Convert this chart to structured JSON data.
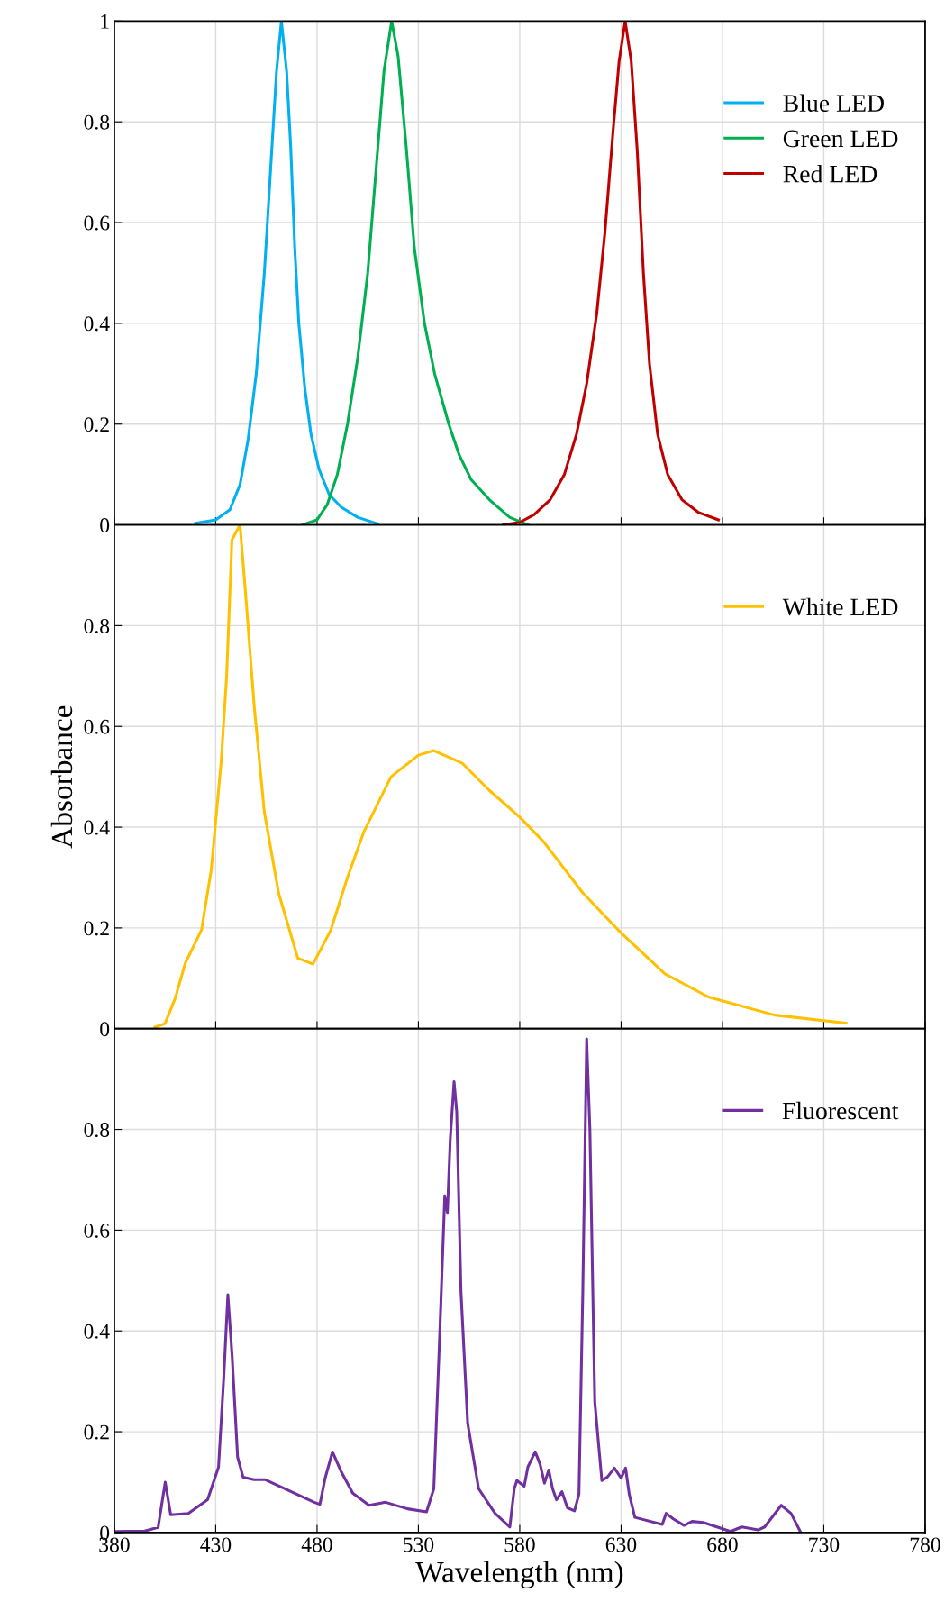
{
  "chart_data": [
    {
      "type": "line",
      "xlim": [
        380,
        780
      ],
      "xticks": [
        380,
        430,
        480,
        530,
        580,
        630,
        680,
        730,
        780
      ],
      "ylim": [
        0,
        1
      ],
      "yticks": [
        0,
        0.2,
        0.4,
        0.6,
        0.8,
        1
      ],
      "grid": true,
      "legend": "top right",
      "tick_labels": "y",
      "series": [
        {
          "name": "Blue LED",
          "color": "#00b0f0",
          "x": [
            420,
            430,
            437,
            442,
            446,
            450,
            454,
            457,
            460,
            462.4,
            465,
            467,
            469,
            471,
            474,
            477,
            481,
            486,
            492,
            500,
            510
          ],
          "values": [
            0.003,
            0.01,
            0.03,
            0.08,
            0.17,
            0.3,
            0.5,
            0.7,
            0.9,
            1,
            0.9,
            0.75,
            0.55,
            0.4,
            0.27,
            0.18,
            0.11,
            0.06,
            0.035,
            0.015,
            0.002
          ]
        },
        {
          "name": "Green LED",
          "color": "#00b050",
          "x": [
            473,
            480,
            485,
            490,
            495,
            500,
            505,
            509,
            513,
            516.8,
            520,
            524,
            528,
            533,
            538,
            545,
            550,
            556,
            565,
            575,
            584
          ],
          "values": [
            0,
            0.01,
            0.04,
            0.1,
            0.2,
            0.33,
            0.5,
            0.7,
            0.9,
            1,
            0.93,
            0.75,
            0.55,
            0.4,
            0.3,
            0.2,
            0.14,
            0.09,
            0.05,
            0.015,
            0
          ]
        },
        {
          "name": "Red LED",
          "color": "#c00000",
          "x": [
            572,
            580,
            587,
            595,
            602,
            608,
            613,
            618,
            622,
            626,
            629,
            632,
            635,
            638,
            641,
            644,
            648,
            653,
            660,
            668,
            678
          ],
          "values": [
            0,
            0.005,
            0.02,
            0.05,
            0.1,
            0.18,
            0.28,
            0.42,
            0.58,
            0.78,
            0.92,
            1,
            0.92,
            0.74,
            0.5,
            0.32,
            0.18,
            0.1,
            0.05,
            0.025,
            0.01
          ]
        }
      ]
    },
    {
      "type": "line",
      "ylabel": "Absorbance",
      "xlim": [
        380,
        780
      ],
      "xticks": [
        380,
        430,
        480,
        530,
        580,
        630,
        680,
        730,
        780
      ],
      "ylim": [
        0,
        1
      ],
      "yticks": [
        0,
        0.2,
        0.4,
        0.6,
        0.8
      ],
      "grid": true,
      "legend": "top right",
      "tick_labels": "y",
      "series": [
        {
          "name": "White LED",
          "color": "#ffc000",
          "x": [
            400,
            405,
            410,
            415,
            423,
            427.8,
            432.7,
            435.4,
            438,
            442,
            445,
            449,
            454,
            461,
            470.5,
            478,
            486.8,
            495,
            503,
            516.5,
            530,
            537.6,
            551.6,
            565,
            580,
            592,
            611,
            630,
            651.6,
            673,
            705.7,
            741
          ],
          "values": [
            0.003,
            0.01,
            0.06,
            0.13,
            0.196,
            0.315,
            0.53,
            0.7,
            0.97,
            1,
            0.85,
            0.64,
            0.43,
            0.27,
            0.14,
            0.128,
            0.196,
            0.3,
            0.39,
            0.5,
            0.543,
            0.552,
            0.527,
            0.473,
            0.42,
            0.37,
            0.27,
            0.19,
            0.109,
            0.063,
            0.027,
            0.011
          ]
        }
      ]
    },
    {
      "type": "line",
      "xlabel": "Wavelength (nm)",
      "xlim": [
        380,
        780
      ],
      "xticks": [
        380,
        430,
        480,
        530,
        580,
        630,
        680,
        730,
        780
      ],
      "ylim": [
        0,
        1
      ],
      "yticks": [
        0,
        0.2,
        0.4,
        0.6,
        0.8
      ],
      "grid": true,
      "legend": "top right",
      "series": [
        {
          "name": "Fluorescent",
          "color": "#7030a0",
          "x": [
            380,
            394.9,
            401.6,
            405.1,
            407.8,
            416.5,
            426,
            431.4,
            434,
            436,
            438.1,
            440.8,
            443.5,
            448.9,
            454.3,
            478.6,
            481.4,
            484,
            487.6,
            492,
            497.6,
            505.7,
            513.8,
            524.6,
            534,
            537.6,
            540.3,
            543,
            544.3,
            545.7,
            547.6,
            548.9,
            551,
            554.3,
            559.7,
            567.8,
            575.1,
            577.3,
            578.6,
            582.2,
            584,
            587.6,
            590,
            592.2,
            594.3,
            596.2,
            598.1,
            600.8,
            603.5,
            607,
            609.2,
            611.1,
            613,
            614.6,
            617,
            620.5,
            623.2,
            626.7,
            630,
            632.2,
            634,
            636.8,
            650.3,
            652.2,
            655.7,
            661.1,
            665,
            670.5,
            684,
            689.5,
            697.6,
            700.8,
            709,
            713.8,
            718.4
          ],
          "values": [
            0.002,
            0.003,
            0.01,
            0.1,
            0.035,
            0.038,
            0.065,
            0.13,
            0.31,
            0.472,
            0.35,
            0.15,
            0.11,
            0.105,
            0.105,
            0.06,
            0.056,
            0.108,
            0.16,
            0.12,
            0.078,
            0.054,
            0.06,
            0.047,
            0.041,
            0.087,
            0.37,
            0.668,
            0.635,
            0.78,
            0.895,
            0.835,
            0.478,
            0.217,
            0.087,
            0.038,
            0.011,
            0.087,
            0.103,
            0.092,
            0.13,
            0.16,
            0.136,
            0.098,
            0.124,
            0.087,
            0.065,
            0.081,
            0.049,
            0.043,
            0.076,
            0.478,
            0.98,
            0.8,
            0.26,
            0.103,
            0.11,
            0.128,
            0.108,
            0.128,
            0.076,
            0.03,
            0.016,
            0.038,
            0.027,
            0.014,
            0.022,
            0.02,
            0.002,
            0.011,
            0.005,
            0.011,
            0.054,
            0.038,
            0.002
          ]
        }
      ]
    }
  ]
}
